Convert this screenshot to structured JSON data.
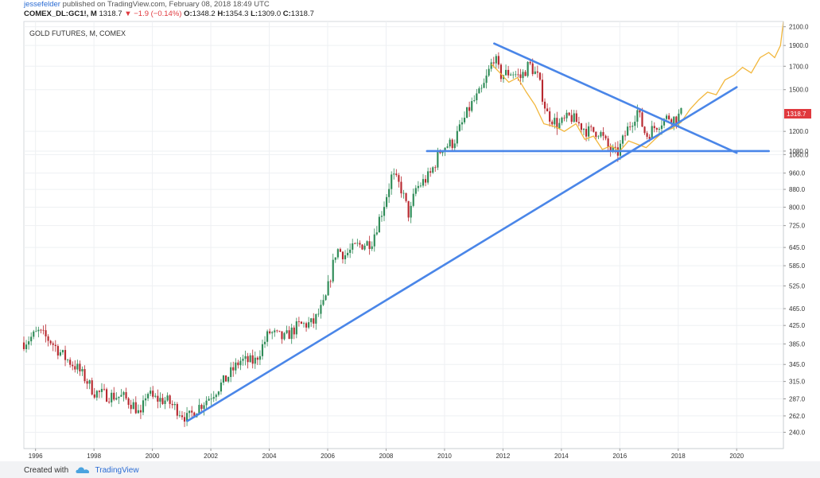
{
  "header": {
    "author": "jessefelder",
    "published": " published on TradingView.com, February 08, 2018 18:49 UTC",
    "symbol": "COMEX_DL:GC1!, M",
    "last": "1318.7",
    "change": "−1.9 (−0.14%)",
    "open_label": "O:",
    "open": "1348.2",
    "high_label": "H:",
    "high": "1354.3",
    "low_label": "L:",
    "low": "1309.0",
    "close_label": "C:",
    "close": "1318.7"
  },
  "footer": {
    "created_with": "Created with",
    "brand": "TradingView"
  },
  "colors": {
    "up": "#2e8b57",
    "down": "#b8282f",
    "trendline": "#4a86e8",
    "overlay": "#f2b73d",
    "price_tag": "#e0393e",
    "grid": "#eef0f3"
  },
  "chart_data": {
    "type": "candlestick",
    "title": "GOLD FUTURES, M, COMEX",
    "x_ticks": [
      "1996",
      "1998",
      "2000",
      "2002",
      "2004",
      "2006",
      "2008",
      "2010",
      "2012",
      "2014",
      "2016",
      "2018",
      "2020"
    ],
    "y_scale": "log",
    "y_ticks": [
      "240.0",
      "262.0",
      "287.0",
      "315.0",
      "345.0",
      "385.0",
      "425.0",
      "465.0",
      "525.0",
      "585.0",
      "645.0",
      "725.0",
      "800.0",
      "880.0",
      "960.0",
      "1060.0",
      "1080.0",
      "1200.0",
      "1318.7",
      "1500.0",
      "1700.0",
      "1900.0",
      "2100.0"
    ],
    "xlim": [
      1995.6,
      2021.6
    ],
    "ylim": [
      220,
      2160
    ],
    "last_price_label": "1318.7",
    "price_path": [
      [
        1995.6,
        388
      ],
      [
        1996.1,
        410
      ],
      [
        1996.5,
        392
      ],
      [
        1997.0,
        358
      ],
      [
        1997.4,
        340
      ],
      [
        1997.7,
        320
      ],
      [
        1998.0,
        298
      ],
      [
        1998.5,
        292
      ],
      [
        1999.0,
        290
      ],
      [
        1999.4,
        276
      ],
      [
        1999.6,
        260
      ],
      [
        1999.8,
        300
      ],
      [
        2000.0,
        288
      ],
      [
        2000.5,
        284
      ],
      [
        2001.0,
        266
      ],
      [
        2001.2,
        258
      ],
      [
        2001.5,
        272
      ],
      [
        2002.0,
        292
      ],
      [
        2002.5,
        318
      ],
      [
        2003.0,
        352
      ],
      [
        2003.5,
        350
      ],
      [
        2004.0,
        410
      ],
      [
        2004.5,
        396
      ],
      [
        2005.0,
        425
      ],
      [
        2005.5,
        430
      ],
      [
        2005.9,
        480
      ],
      [
        2006.3,
        640
      ],
      [
        2006.6,
        620
      ],
      [
        2007.0,
        650
      ],
      [
        2007.5,
        665
      ],
      [
        2007.9,
        800
      ],
      [
        2008.2,
        950
      ],
      [
        2008.5,
        890
      ],
      [
        2008.8,
        760
      ],
      [
        2009.0,
        880
      ],
      [
        2009.5,
        950
      ],
      [
        2009.9,
        1100
      ],
      [
        2010.3,
        1130
      ],
      [
        2010.9,
        1380
      ],
      [
        2011.3,
        1500
      ],
      [
        2011.7,
        1800
      ],
      [
        2011.9,
        1620
      ],
      [
        2012.3,
        1650
      ],
      [
        2012.6,
        1600
      ],
      [
        2012.9,
        1720
      ],
      [
        2013.2,
        1600
      ],
      [
        2013.5,
        1320
      ],
      [
        2013.9,
        1240
      ],
      [
        2014.3,
        1300
      ],
      [
        2014.9,
        1200
      ],
      [
        2015.3,
        1200
      ],
      [
        2015.6,
        1100
      ],
      [
        2015.9,
        1060
      ],
      [
        2016.3,
        1230
      ],
      [
        2016.6,
        1340
      ],
      [
        2016.9,
        1170
      ],
      [
        2017.3,
        1250
      ],
      [
        2017.7,
        1300
      ],
      [
        2017.9,
        1280
      ],
      [
        2018.1,
        1319
      ]
    ],
    "overlay_path": [
      [
        2011.6,
        1720
      ],
      [
        2011.9,
        1640
      ],
      [
        2012.2,
        1560
      ],
      [
        2012.5,
        1600
      ],
      [
        2012.8,
        1480
      ],
      [
        2013.1,
        1380
      ],
      [
        2013.4,
        1250
      ],
      [
        2013.8,
        1230
      ],
      [
        2014.1,
        1200
      ],
      [
        2014.5,
        1250
      ],
      [
        2014.8,
        1150
      ],
      [
        2015.1,
        1170
      ],
      [
        2015.4,
        1090
      ],
      [
        2015.7,
        1110
      ],
      [
        2016.0,
        1080
      ],
      [
        2016.3,
        1140
      ],
      [
        2016.6,
        1120
      ],
      [
        2016.9,
        1100
      ],
      [
        2017.2,
        1150
      ],
      [
        2017.5,
        1200
      ],
      [
        2017.8,
        1220
      ],
      [
        2018.1,
        1260
      ],
      [
        2018.4,
        1350
      ],
      [
        2018.7,
        1420
      ],
      [
        2019.0,
        1480
      ],
      [
        2019.3,
        1460
      ],
      [
        2019.6,
        1580
      ],
      [
        2019.9,
        1620
      ],
      [
        2020.2,
        1690
      ],
      [
        2020.5,
        1640
      ],
      [
        2020.8,
        1780
      ],
      [
        2021.1,
        1830
      ],
      [
        2021.3,
        1780
      ],
      [
        2021.5,
        1900
      ],
      [
        2021.6,
        2160
      ]
    ],
    "trendlines": [
      {
        "from": [
          2001.2,
          255
        ],
        "to": [
          2020.0,
          1520
        ]
      },
      {
        "from": [
          2011.7,
          1920
        ],
        "to": [
          2020.0,
          1070
        ]
      },
      {
        "from": [
          2009.4,
          1080
        ],
        "to": [
          2021.1,
          1080
        ]
      }
    ]
  }
}
